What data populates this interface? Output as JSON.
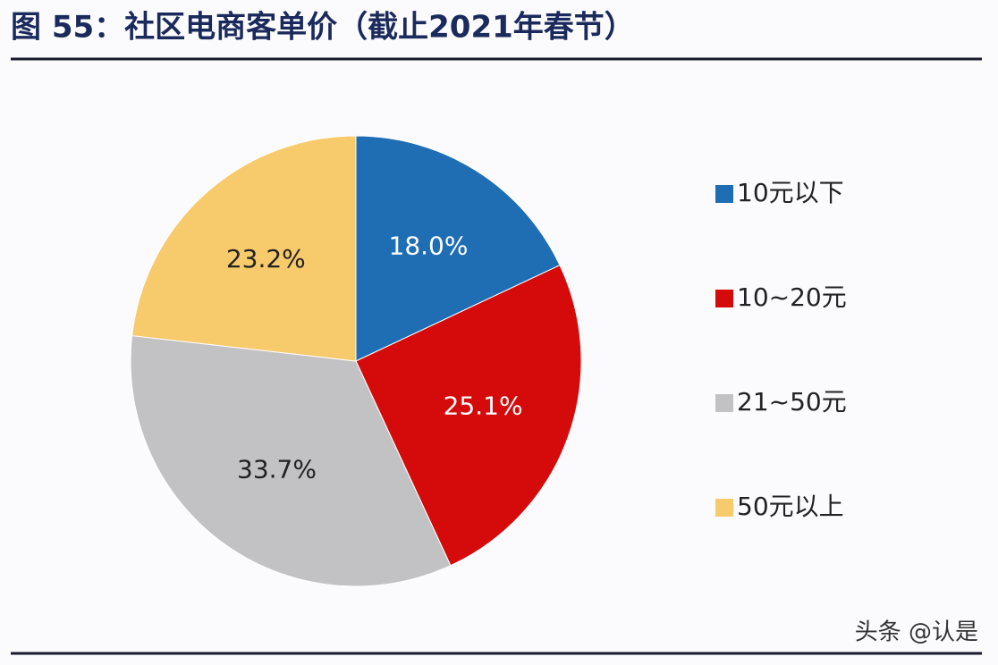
{
  "chart_data": {
    "type": "pie",
    "title": "图 55：社区电商客单价（截止2021年春节）",
    "categories": [
      "10元以下",
      "10~20元",
      "21~50元",
      "50元以上"
    ],
    "values": [
      18.0,
      25.1,
      33.7,
      23.2
    ],
    "value_labels": [
      "18.0%",
      "25.1%",
      "33.7%",
      "23.2%"
    ],
    "colors": [
      "#1f6db3",
      "#d50a0a",
      "#c2c1c3",
      "#f7ca6b"
    ],
    "legend": "right"
  },
  "watermark": "头条 @认是"
}
